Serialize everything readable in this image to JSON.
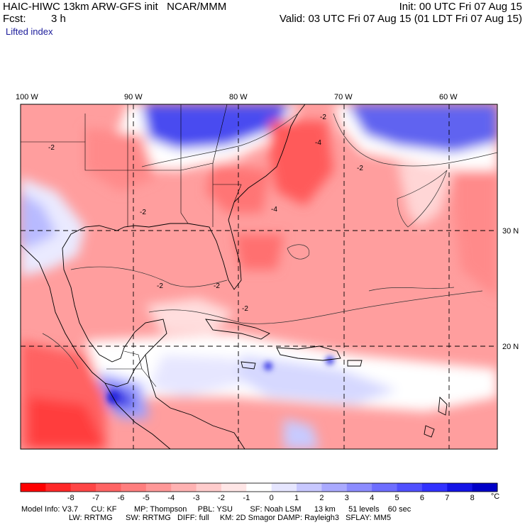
{
  "header": {
    "model_title": "HAIC-HIWC 13km ARW-GFS init   NCAR/MMM",
    "init": "Init: 00 UTC Fri 07 Aug 15",
    "fcst_label": "Fcst:",
    "fcst_value": "3 h",
    "valid": "Valid: 03 UTC Fri 07 Aug 15 (01 LDT Fri 07 Aug 15)",
    "field": "Lifted index"
  },
  "map": {
    "projection": "Mercator",
    "lon_labels": [
      "100 W",
      "90 W",
      "80 W",
      "70 W",
      "60 W"
    ],
    "lat_labels": [
      "30 N",
      "20 N"
    ],
    "contour_labels": [
      "-2",
      "-2",
      "-2",
      "-4",
      "-4",
      "-2",
      "-2",
      "-2",
      "-2"
    ],
    "colors": {
      "very_unstable": "#ff3c3c",
      "unstable": "#ff9e9e",
      "neutral": "#ffffff",
      "stable": "#a4a8ff",
      "very_stable": "#3232e6"
    }
  },
  "colorbar": {
    "unit": "°C",
    "ticks": [
      "-8",
      "-7",
      "-6",
      "-5",
      "-4",
      "-3",
      "-2",
      "-1",
      "0",
      "1",
      "2",
      "3",
      "4",
      "5",
      "6",
      "7",
      "8"
    ],
    "colors": [
      "#ff0000",
      "#ff2828",
      "#ff4646",
      "#ff6464",
      "#ff7e7e",
      "#ff9898",
      "#ffb2b2",
      "#ffcccc",
      "#ffe6e6",
      "#ffffff",
      "#e6e6ff",
      "#c8c8ff",
      "#aaaaff",
      "#8c8cff",
      "#6e6eff",
      "#5050ff",
      "#3232ff",
      "#1414e6",
      "#0000c8"
    ]
  },
  "model_info": {
    "line1": "Model Info: V3.7      CU: KF        MP: Thompson     PBL: YSU        SF: Noah LSM      13 km      51 levels    60 sec",
    "line2": "LW: RRTMG      SW: RRTMG   DIFF: full     KM: 2D Smagor DAMP: Rayleigh3   SFLAY: MM5"
  }
}
